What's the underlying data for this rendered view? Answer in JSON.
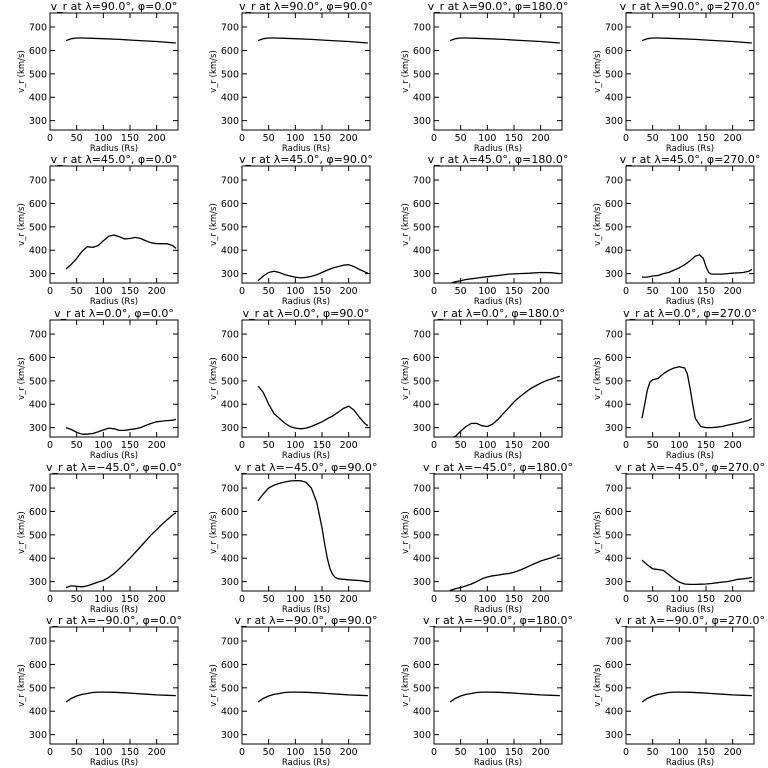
{
  "figure": {
    "colors": {
      "line": "#000000",
      "background": "#ffffff"
    }
  },
  "chart_data": [
    {
      "type": "line",
      "title": "v_r at λ=90.0°, φ=0.0°",
      "xlabel": "Radius (Rs)",
      "ylabel": "v_r (km/s)",
      "xlim": [
        0,
        240
      ],
      "ylim": [
        260,
        760
      ],
      "xticks": [
        0,
        50,
        100,
        150,
        200
      ],
      "yticks": [
        300,
        400,
        500,
        600,
        700
      ],
      "x": [
        30,
        40,
        50,
        60,
        80,
        100,
        130,
        160,
        200,
        236
      ],
      "y": [
        642,
        650,
        653,
        653,
        652,
        650,
        647,
        643,
        638,
        632
      ]
    },
    {
      "type": "line",
      "title": "v_r at λ=90.0°, φ=90.0°",
      "xlabel": "Radius (Rs)",
      "ylabel": "v_r (km/s)",
      "xlim": [
        0,
        240
      ],
      "ylim": [
        260,
        760
      ],
      "xticks": [
        0,
        50,
        100,
        150,
        200
      ],
      "yticks": [
        300,
        400,
        500,
        600,
        700
      ],
      "x": [
        30,
        40,
        50,
        60,
        80,
        100,
        130,
        160,
        200,
        236
      ],
      "y": [
        642,
        650,
        653,
        653,
        652,
        650,
        647,
        643,
        638,
        632
      ]
    },
    {
      "type": "line",
      "title": "v_r at λ=90.0°, φ=180.0°",
      "xlabel": "Radius (Rs)",
      "ylabel": "v_r (km/s)",
      "xlim": [
        0,
        240
      ],
      "ylim": [
        260,
        760
      ],
      "xticks": [
        0,
        50,
        100,
        150,
        200
      ],
      "yticks": [
        300,
        400,
        500,
        600,
        700
      ],
      "x": [
        30,
        40,
        50,
        60,
        80,
        100,
        130,
        160,
        200,
        236
      ],
      "y": [
        642,
        650,
        653,
        653,
        652,
        650,
        647,
        643,
        638,
        632
      ]
    },
    {
      "type": "line",
      "title": "v_r at λ=90.0°, φ=270.0°",
      "xlabel": "Radius (Rs)",
      "ylabel": "v_r (km/s)",
      "xlim": [
        0,
        240
      ],
      "ylim": [
        260,
        760
      ],
      "xticks": [
        0,
        50,
        100,
        150,
        200
      ],
      "yticks": [
        300,
        400,
        500,
        600,
        700
      ],
      "x": [
        30,
        40,
        50,
        60,
        80,
        100,
        130,
        160,
        200,
        236
      ],
      "y": [
        642,
        650,
        653,
        653,
        652,
        650,
        647,
        643,
        638,
        632
      ]
    },
    {
      "type": "line",
      "title": "v_r at λ=45.0°, φ=0.0°",
      "xlabel": "Radius (Rs)",
      "ylabel": "v_r (km/s)",
      "xlim": [
        0,
        240
      ],
      "ylim": [
        260,
        760
      ],
      "xticks": [
        0,
        50,
        100,
        150,
        200
      ],
      "yticks": [
        300,
        400,
        500,
        600,
        700
      ],
      "x": [
        30,
        40,
        50,
        60,
        70,
        80,
        90,
        100,
        110,
        120,
        130,
        140,
        150,
        160,
        170,
        180,
        190,
        200,
        210,
        220,
        230,
        236
      ],
      "y": [
        320,
        340,
        365,
        395,
        415,
        412,
        420,
        440,
        460,
        465,
        458,
        448,
        450,
        455,
        450,
        440,
        432,
        428,
        428,
        428,
        420,
        408
      ]
    },
    {
      "type": "line",
      "title": "v_r at λ=45.0°, φ=90.0°",
      "xlabel": "Radius (Rs)",
      "ylabel": "v_r (km/s)",
      "xlim": [
        0,
        240
      ],
      "ylim": [
        260,
        760
      ],
      "xticks": [
        0,
        50,
        100,
        150,
        200
      ],
      "yticks": [
        300,
        400,
        500,
        600,
        700
      ],
      "x": [
        30,
        40,
        50,
        60,
        70,
        80,
        90,
        100,
        110,
        120,
        130,
        140,
        150,
        160,
        170,
        180,
        190,
        200,
        210,
        220,
        230,
        236
      ],
      "y": [
        270,
        290,
        305,
        310,
        305,
        296,
        290,
        285,
        282,
        284,
        288,
        295,
        305,
        315,
        324,
        330,
        336,
        338,
        330,
        318,
        308,
        302
      ]
    },
    {
      "type": "line",
      "title": "v_r at λ=45.0°, φ=180.0°",
      "xlabel": "Radius (Rs)",
      "ylabel": "v_r (km/s)",
      "xlim": [
        0,
        240
      ],
      "ylim": [
        260,
        760
      ],
      "xticks": [
        0,
        50,
        100,
        150,
        200
      ],
      "yticks": [
        300,
        400,
        500,
        600,
        700
      ],
      "x": [
        30,
        40,
        50,
        60,
        70,
        80,
        90,
        100,
        120,
        140,
        160,
        180,
        200,
        220,
        236
      ],
      "y": [
        258,
        265,
        270,
        275,
        278,
        281,
        284,
        287,
        292,
        298,
        300,
        302,
        305,
        304,
        300
      ]
    },
    {
      "type": "line",
      "title": "v_r at λ=45.0°, φ=270.0°",
      "xlabel": "Radius (Rs)",
      "ylabel": "v_r (km/s)",
      "xlim": [
        0,
        240
      ],
      "ylim": [
        260,
        760
      ],
      "xticks": [
        0,
        50,
        100,
        150,
        200
      ],
      "yticks": [
        300,
        400,
        500,
        600,
        700
      ],
      "x": [
        30,
        40,
        50,
        60,
        70,
        80,
        90,
        100,
        110,
        120,
        130,
        138,
        145,
        150,
        155,
        160,
        170,
        180,
        190,
        200,
        210,
        220,
        230,
        236
      ],
      "y": [
        285,
        285,
        290,
        292,
        300,
        305,
        315,
        325,
        338,
        355,
        375,
        380,
        365,
        330,
        305,
        298,
        298,
        298,
        300,
        302,
        303,
        305,
        310,
        318
      ]
    },
    {
      "type": "line",
      "title": "v_r at λ=0.0°, φ=0.0°",
      "xlabel": "Radius (Rs)",
      "ylabel": "v_r (km/s)",
      "xlim": [
        0,
        240
      ],
      "ylim": [
        260,
        760
      ],
      "xticks": [
        0,
        50,
        100,
        150,
        200
      ],
      "yticks": [
        300,
        400,
        500,
        600,
        700
      ],
      "x": [
        30,
        40,
        50,
        60,
        70,
        80,
        90,
        100,
        110,
        120,
        130,
        140,
        150,
        160,
        170,
        180,
        190,
        200,
        210,
        220,
        230,
        236
      ],
      "y": [
        300,
        292,
        280,
        272,
        272,
        275,
        282,
        290,
        298,
        295,
        288,
        288,
        292,
        295,
        300,
        310,
        318,
        325,
        328,
        330,
        332,
        335
      ]
    },
    {
      "type": "line",
      "title": "v_r at λ=0.0°, φ=90.0°",
      "xlabel": "Radius (Rs)",
      "ylabel": "v_r (km/s)",
      "xlim": [
        0,
        240
      ],
      "ylim": [
        260,
        760
      ],
      "xticks": [
        0,
        50,
        100,
        150,
        200
      ],
      "yticks": [
        300,
        400,
        500,
        600,
        700
      ],
      "x": [
        30,
        40,
        50,
        60,
        70,
        80,
        90,
        100,
        110,
        120,
        130,
        140,
        150,
        160,
        170,
        180,
        190,
        200,
        210,
        220,
        230,
        236
      ],
      "y": [
        478,
        450,
        400,
        360,
        340,
        320,
        305,
        298,
        295,
        298,
        305,
        315,
        325,
        338,
        350,
        365,
        382,
        392,
        375,
        345,
        318,
        308
      ]
    },
    {
      "type": "line",
      "title": "v_r at λ=0.0°, φ=180.0°",
      "xlabel": "Radius (Rs)",
      "ylabel": "v_r (km/s)",
      "xlim": [
        0,
        240
      ],
      "ylim": [
        260,
        760
      ],
      "xticks": [
        0,
        50,
        100,
        150,
        200
      ],
      "yticks": [
        300,
        400,
        500,
        600,
        700
      ],
      "x": [
        30,
        40,
        50,
        60,
        70,
        80,
        90,
        100,
        110,
        120,
        130,
        140,
        150,
        160,
        170,
        180,
        190,
        200,
        210,
        220,
        230,
        236
      ],
      "y": [
        255,
        262,
        285,
        305,
        318,
        318,
        308,
        305,
        315,
        335,
        360,
        385,
        410,
        430,
        448,
        465,
        478,
        490,
        500,
        508,
        515,
        520
      ]
    },
    {
      "type": "line",
      "title": "v_r at λ=0.0°, φ=270.0°",
      "xlabel": "Radius (Rs)",
      "ylabel": "v_r (km/s)",
      "xlim": [
        0,
        240
      ],
      "ylim": [
        260,
        760
      ],
      "xticks": [
        0,
        50,
        100,
        150,
        200
      ],
      "yticks": [
        300,
        400,
        500,
        600,
        700
      ],
      "x": [
        30,
        35,
        40,
        45,
        50,
        60,
        70,
        80,
        90,
        100,
        110,
        115,
        120,
        125,
        130,
        140,
        150,
        160,
        170,
        180,
        190,
        200,
        210,
        220,
        230,
        236
      ],
      "y": [
        340,
        400,
        460,
        495,
        505,
        510,
        530,
        545,
        555,
        560,
        555,
        530,
        470,
        400,
        340,
        305,
        300,
        300,
        302,
        305,
        310,
        315,
        320,
        325,
        332,
        338
      ]
    },
    {
      "type": "line",
      "title": "v_r at λ=−45.0°, φ=0.0°",
      "xlabel": "Radius (Rs)",
      "ylabel": "v_r (km/s)",
      "xlim": [
        0,
        240
      ],
      "ylim": [
        260,
        760
      ],
      "xticks": [
        0,
        50,
        100,
        150,
        200
      ],
      "yticks": [
        300,
        400,
        500,
        600,
        700
      ],
      "x": [
        30,
        40,
        50,
        60,
        70,
        80,
        90,
        100,
        110,
        120,
        130,
        140,
        150,
        160,
        170,
        180,
        190,
        200,
        210,
        220,
        230,
        236
      ],
      "y": [
        275,
        282,
        280,
        278,
        282,
        290,
        298,
        305,
        318,
        335,
        355,
        378,
        400,
        425,
        450,
        475,
        500,
        522,
        545,
        565,
        585,
        595
      ]
    },
    {
      "type": "line",
      "title": "v_r at λ=−45.0°, φ=90.0°",
      "xlabel": "Radius (Rs)",
      "ylabel": "v_r (km/s)",
      "xlim": [
        0,
        240
      ],
      "ylim": [
        260,
        760
      ],
      "xticks": [
        0,
        50,
        100,
        150,
        200
      ],
      "yticks": [
        300,
        400,
        500,
        600,
        700
      ],
      "x": [
        30,
        40,
        50,
        60,
        70,
        80,
        90,
        100,
        110,
        120,
        130,
        140,
        150,
        155,
        160,
        165,
        170,
        175,
        180,
        190,
        200,
        210,
        220,
        230,
        236
      ],
      "y": [
        645,
        675,
        700,
        712,
        720,
        726,
        730,
        732,
        731,
        725,
        700,
        640,
        530,
        460,
        400,
        355,
        330,
        318,
        312,
        310,
        308,
        306,
        305,
        302,
        300
      ]
    },
    {
      "type": "line",
      "title": "v_r at λ=−45.0°, φ=180.0°",
      "xlabel": "Radius (Rs)",
      "ylabel": "v_r (km/s)",
      "xlim": [
        0,
        240
      ],
      "ylim": [
        260,
        760
      ],
      "xticks": [
        0,
        50,
        100,
        150,
        200
      ],
      "yticks": [
        300,
        400,
        500,
        600,
        700
      ],
      "x": [
        30,
        40,
        50,
        60,
        70,
        80,
        90,
        100,
        110,
        120,
        130,
        140,
        150,
        160,
        170,
        180,
        190,
        200,
        210,
        220,
        230,
        236
      ],
      "y": [
        262,
        270,
        275,
        282,
        290,
        300,
        312,
        320,
        325,
        328,
        332,
        335,
        340,
        348,
        358,
        368,
        378,
        388,
        395,
        402,
        410,
        415
      ]
    },
    {
      "type": "line",
      "title": "v_r at λ=−45.0°, φ=270.0°",
      "xlabel": "Radius (Rs)",
      "ylabel": "v_r (km/s)",
      "xlim": [
        0,
        240
      ],
      "ylim": [
        260,
        760
      ],
      "xticks": [
        0,
        50,
        100,
        150,
        200
      ],
      "yticks": [
        300,
        400,
        500,
        600,
        700
      ],
      "x": [
        30,
        40,
        50,
        60,
        70,
        80,
        90,
        100,
        110,
        120,
        130,
        140,
        150,
        160,
        170,
        180,
        190,
        200,
        210,
        220,
        230,
        236
      ],
      "y": [
        392,
        372,
        355,
        352,
        348,
        330,
        312,
        298,
        290,
        288,
        288,
        289,
        290,
        292,
        295,
        298,
        300,
        305,
        310,
        312,
        315,
        318
      ]
    },
    {
      "type": "line",
      "title": "v_r at λ=−90.0°, φ=0.0°",
      "xlabel": "Radius (Rs)",
      "ylabel": "v_r (km/s)",
      "xlim": [
        0,
        240
      ],
      "ylim": [
        260,
        760
      ],
      "xticks": [
        0,
        50,
        100,
        150,
        200
      ],
      "yticks": [
        300,
        400,
        500,
        600,
        700
      ],
      "x": [
        30,
        40,
        50,
        60,
        70,
        80,
        90,
        100,
        120,
        140,
        160,
        180,
        200,
        220,
        236
      ],
      "y": [
        440,
        455,
        465,
        472,
        476,
        480,
        482,
        482,
        481,
        479,
        476,
        473,
        470,
        468,
        467
      ]
    },
    {
      "type": "line",
      "title": "v_r at λ=−90.0°, φ=90.0°",
      "xlabel": "Radius (Rs)",
      "ylabel": "v_r (km/s)",
      "xlim": [
        0,
        240
      ],
      "ylim": [
        260,
        760
      ],
      "xticks": [
        0,
        50,
        100,
        150,
        200
      ],
      "yticks": [
        300,
        400,
        500,
        600,
        700
      ],
      "x": [
        30,
        40,
        50,
        60,
        70,
        80,
        90,
        100,
        120,
        140,
        160,
        180,
        200,
        220,
        236
      ],
      "y": [
        440,
        455,
        465,
        472,
        476,
        480,
        482,
        482,
        481,
        479,
        476,
        473,
        470,
        468,
        467
      ]
    },
    {
      "type": "line",
      "title": "v_r at λ=−90.0°, φ=180.0°",
      "xlabel": "Radius (Rs)",
      "ylabel": "v_r (km/s)",
      "xlim": [
        0,
        240
      ],
      "ylim": [
        260,
        760
      ],
      "xticks": [
        0,
        50,
        100,
        150,
        200
      ],
      "yticks": [
        300,
        400,
        500,
        600,
        700
      ],
      "x": [
        30,
        40,
        50,
        60,
        70,
        80,
        90,
        100,
        120,
        140,
        160,
        180,
        200,
        220,
        236
      ],
      "y": [
        440,
        455,
        465,
        472,
        476,
        480,
        482,
        482,
        481,
        479,
        476,
        473,
        470,
        468,
        467
      ]
    },
    {
      "type": "line",
      "title": "v_r at λ=−90.0°, φ=270.0°",
      "xlabel": "Radius (Rs)",
      "ylabel": "v_r (km/s)",
      "xlim": [
        0,
        240
      ],
      "ylim": [
        260,
        760
      ],
      "xticks": [
        0,
        50,
        100,
        150,
        200
      ],
      "yticks": [
        300,
        400,
        500,
        600,
        700
      ],
      "x": [
        30,
        40,
        50,
        60,
        70,
        80,
        90,
        100,
        120,
        140,
        160,
        180,
        200,
        220,
        236
      ],
      "y": [
        440,
        455,
        465,
        472,
        476,
        480,
        482,
        482,
        481,
        479,
        476,
        473,
        470,
        468,
        467
      ]
    }
  ]
}
